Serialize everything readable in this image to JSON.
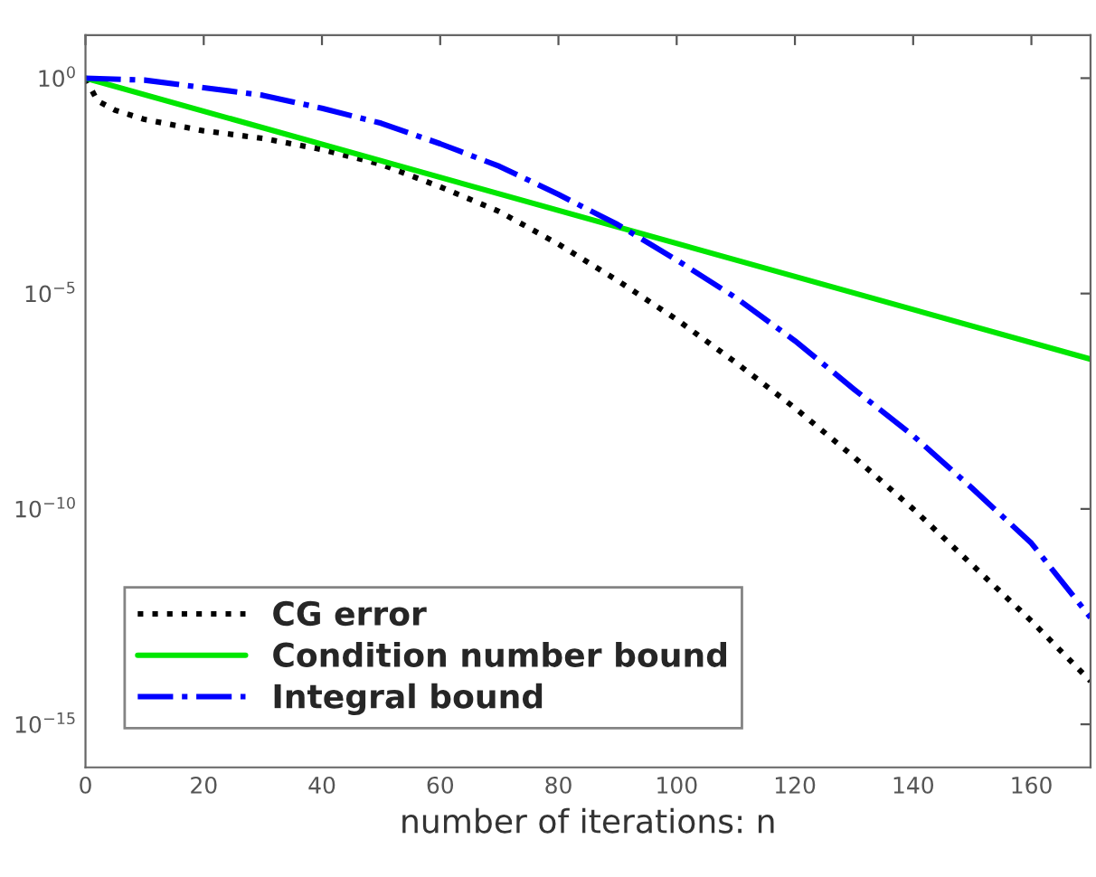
{
  "chart_data": {
    "type": "line",
    "xlabel": "number of iterations: n",
    "log": "y",
    "grid": false,
    "legend": "bottom left",
    "xlim": [
      0,
      170
    ],
    "xticks": [
      0,
      20,
      40,
      60,
      80,
      100,
      120,
      140,
      160
    ],
    "ylim": [
      1e-16,
      10
    ],
    "yticks": [
      {
        "value": 1,
        "label": "10$^{0}$"
      },
      {
        "value": 1e-05,
        "label": "10$^{−5}$"
      },
      {
        "value": 1e-10,
        "label": "10$^{−10}$"
      },
      {
        "value": 1e-15,
        "label": "10$^{−15}$"
      }
    ],
    "series": [
      {
        "name": "CG error",
        "color": "#000000",
        "line_style": "dotted",
        "x": [
          0,
          2,
          5,
          10,
          20,
          30,
          40,
          50,
          60,
          70,
          80,
          90,
          100,
          110,
          120,
          130,
          140,
          150,
          160,
          170
        ],
        "values": [
          1,
          0.3,
          0.18,
          0.11,
          0.06,
          0.04,
          0.022,
          0.01,
          0.003,
          0.0008,
          0.00014,
          2e-05,
          2.5e-06,
          2.5e-07,
          2.2e-08,
          1.6e-09,
          1e-10,
          5e-12,
          2.5e-13,
          1e-14
        ]
      },
      {
        "name": "Condition number bound",
        "color": "#00e600",
        "line_style": "solid",
        "x": [
          0,
          170
        ],
        "values": [
          1,
          3e-07
        ]
      },
      {
        "name": "Integral bound",
        "color": "#0000ff",
        "line_style": "dashdot",
        "x": [
          0,
          10,
          20,
          30,
          40,
          50,
          60,
          70,
          80,
          90,
          100,
          110,
          120,
          130,
          140,
          150,
          160,
          170
        ],
        "values": [
          1,
          0.9,
          0.6,
          0.4,
          0.2,
          0.09,
          0.03,
          0.009,
          0.002,
          0.0004,
          6e-05,
          8e-06,
          8e-07,
          6e-08,
          5e-09,
          3e-10,
          1.6e-11,
          3e-13
        ]
      }
    ]
  }
}
